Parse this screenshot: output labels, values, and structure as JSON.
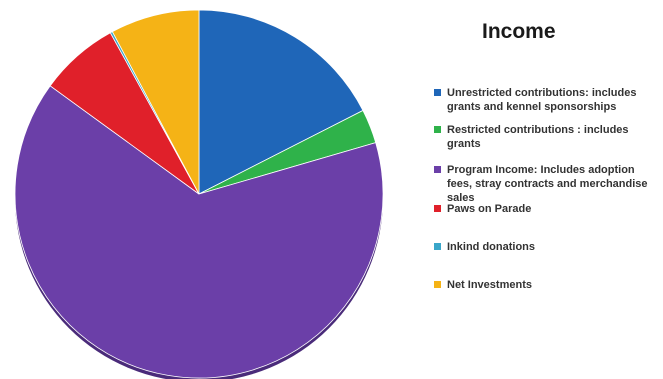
{
  "chart_data": {
    "type": "pie",
    "title": "Income",
    "legend_position": "right",
    "series": [
      {
        "name": "Unrestricted contributions: includes grants and kennel sponsorships",
        "value": 17.5,
        "color": "#1f66b8"
      },
      {
        "name": "Restricted contributions : includes grants",
        "value": 3.0,
        "color": "#2fb24a"
      },
      {
        "name": "Program Income: Includes adoption fees, stray contracts and merchandise sales",
        "value": 64.5,
        "color": "#6b3fa8"
      },
      {
        "name": "Paws on Parade",
        "value": 7.0,
        "color": "#e0202a"
      },
      {
        "name": "Inkind donations",
        "value": 0.2,
        "color": "#3aa6c9"
      },
      {
        "name": "Net Investments",
        "value": 7.8,
        "color": "#f5b316"
      }
    ]
  }
}
